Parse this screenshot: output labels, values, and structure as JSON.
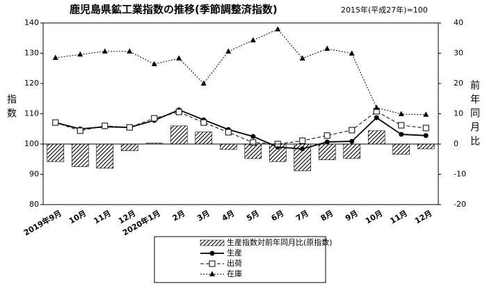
{
  "chart_data": {
    "type": "combo",
    "title": "鹿児島県鉱工業指数の推移(季節調整済指数)",
    "subtitle": "2015年(平成27年)=100",
    "y_label": "指数",
    "y2_label": "前年同月比",
    "categories": [
      "2019年9月",
      "10月",
      "11月",
      "12月",
      "2020年1月",
      "2月",
      "3月",
      "4月",
      "5月",
      "6月",
      "7月",
      "8月",
      "9月",
      "10月",
      "11月",
      "12月"
    ],
    "ylim": [
      80,
      140
    ],
    "yticks": [
      80,
      90,
      100,
      110,
      120,
      130,
      140
    ],
    "y2lim": [
      -20,
      40
    ],
    "y2ticks": [
      -20,
      -10,
      0,
      10,
      20,
      30,
      40
    ],
    "series": [
      {
        "name": "生産指数対前年同月比(原指数)",
        "type": "bar",
        "axis": "y2",
        "color": "#000000",
        "values": [
          -5.8,
          -7.5,
          -8,
          -2.2,
          0.3,
          6,
          4,
          -1.8,
          -4.8,
          -5.8,
          -8.8,
          -5.2,
          -4.8,
          4.4,
          -3.4,
          -1.6
        ]
      },
      {
        "name": "生産",
        "type": "line",
        "style": "solid",
        "marker": "circle",
        "color": "#000000",
        "values": [
          107.1,
          105,
          105.7,
          105.5,
          107.8,
          111.3,
          108,
          104.8,
          102.5,
          99,
          98.4,
          100.7,
          100.9,
          108.7,
          103.2,
          102.8
        ]
      },
      {
        "name": "出荷",
        "type": "line",
        "style": "dashed",
        "marker": "square",
        "color": "#000000",
        "values": [
          107.1,
          104.4,
          106,
          105.5,
          108.5,
          110.6,
          107.1,
          103.9,
          100.5,
          100,
          101.1,
          102.8,
          104.6,
          110.8,
          106.2,
          105.3
        ]
      },
      {
        "name": "在庫",
        "type": "line",
        "style": "dotted",
        "marker": "triangle",
        "color": "#000000",
        "values": [
          128.5,
          129.6,
          130.6,
          130.6,
          126.4,
          128.3,
          120,
          130.6,
          134.3,
          137.9,
          128.3,
          131.5,
          129.9,
          112,
          109.9,
          109.7
        ]
      }
    ]
  }
}
